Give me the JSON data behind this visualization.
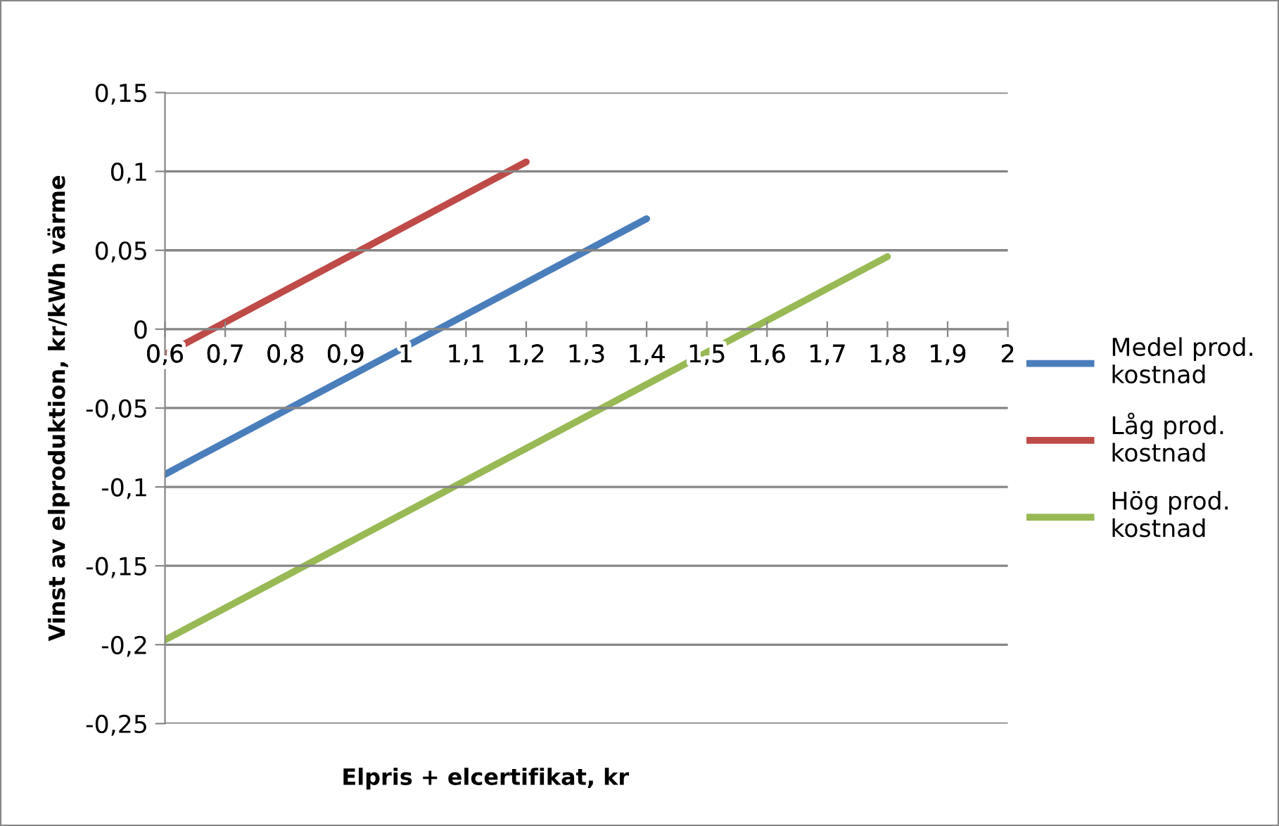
{
  "chart_data": {
    "type": "line",
    "xlabel": "Elpris + elcertifikat, kr",
    "ylabel": "Vinst av elproduktion, kr/kWh värme",
    "series": [
      {
        "name": "Medel prod. kostnad",
        "color": "#4a7ebb",
        "x": [
          0.6,
          1.4
        ],
        "values": [
          -0.092,
          0.07
        ]
      },
      {
        "name": "Låg prod. kostnad",
        "color": "#be4b48",
        "x": [
          0.6,
          1.2
        ],
        "values": [
          -0.016,
          0.106
        ]
      },
      {
        "name": "Hög prod. kostnad",
        "color": "#98b954",
        "x": [
          0.6,
          1.8
        ],
        "values": [
          -0.197,
          0.046
        ]
      }
    ],
    "xlim": [
      0.6,
      2
    ],
    "ylim": [
      -0.25,
      0.15
    ],
    "xticks": [
      {
        "value": 0.6,
        "label": "0,6"
      },
      {
        "value": 0.7,
        "label": "0,7"
      },
      {
        "value": 0.8,
        "label": "0,8"
      },
      {
        "value": 0.9,
        "label": "0,9"
      },
      1,
      {
        "value": 1.1,
        "label": "1,1"
      },
      {
        "value": 1.2,
        "label": "1,2"
      },
      {
        "value": 1.3,
        "label": "1,3"
      },
      {
        "value": 1.4,
        "label": "1,4"
      },
      {
        "value": 1.5,
        "label": "1,5"
      },
      {
        "value": 1.6,
        "label": "1,6"
      },
      {
        "value": 1.7,
        "label": "1,7"
      },
      {
        "value": 1.8,
        "label": "1,8"
      },
      {
        "value": 1.9,
        "label": "1,9"
      },
      2
    ],
    "yticks": [
      {
        "value": -0.25,
        "label": "-0,25"
      },
      {
        "value": -0.2,
        "label": "-0,2"
      },
      {
        "value": -0.15,
        "label": "-0,15"
      },
      {
        "value": -0.1,
        "label": "-0,1"
      },
      {
        "value": -0.05,
        "label": "-0,05"
      },
      0,
      {
        "value": 0.05,
        "label": "0,05"
      },
      {
        "value": 0.1,
        "label": "0,1"
      },
      {
        "value": 0.15,
        "label": "0,15"
      }
    ],
    "grid": "y",
    "legend": "right",
    "marker": "none",
    "line_style": "solid"
  }
}
